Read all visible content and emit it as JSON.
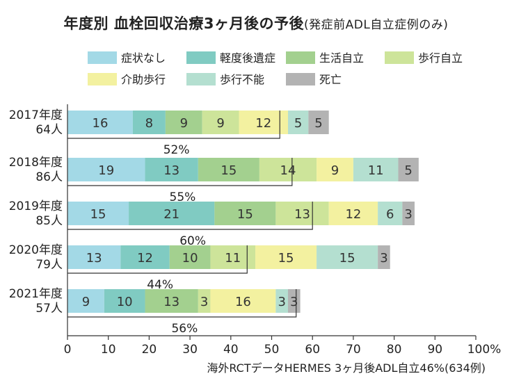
{
  "title": "年度別 血栓回収治療3ヶ月後の予後",
  "subtitle": "(発症前ADL自立症例のみ)",
  "footnote": "海外RCTデータHERMES 3ヶ月後ADL自立46%(634例)",
  "chart_data": {
    "type": "bar",
    "orientation": "horizontal",
    "stacked": true,
    "title": "年度別 血栓回収治療3ヶ月後の予後",
    "subtitle": "(発症前ADL自立症例のみ)",
    "xlim": [
      0,
      100
    ],
    "x_ticks": [
      "0",
      "10",
      "20",
      "30",
      "40",
      "50",
      "60",
      "70",
      "80",
      "90",
      "100%"
    ],
    "legend_position": "top",
    "grid": false,
    "categories": [
      {
        "year": "2017年度",
        "n": "64人"
      },
      {
        "year": "2018年度",
        "n": "86人"
      },
      {
        "year": "2019年度",
        "n": "85人"
      },
      {
        "year": "2020年度",
        "n": "79人"
      },
      {
        "year": "2021年度",
        "n": "57人"
      }
    ],
    "series": [
      {
        "name": "症状なし",
        "color": "#a3d9e6",
        "values": [
          16,
          19,
          15,
          13,
          9
        ]
      },
      {
        "name": "軽度後遺症",
        "color": "#80cbc2",
        "values": [
          8,
          13,
          21,
          12,
          10
        ]
      },
      {
        "name": "生活自立",
        "color": "#a3d08f",
        "values": [
          9,
          15,
          15,
          10,
          13
        ]
      },
      {
        "name": "歩行自立",
        "color": "#cde49a",
        "values": [
          9,
          14,
          13,
          11,
          3
        ]
      },
      {
        "name": "介助歩行",
        "color": "#f3f1a0",
        "values": [
          12,
          9,
          12,
          15,
          16
        ]
      },
      {
        "name": "歩行不能",
        "color": "#b4dfd0",
        "values": [
          5,
          11,
          6,
          15,
          3
        ]
      },
      {
        "name": "死亡",
        "color": "#b3b3b3",
        "values": [
          5,
          5,
          3,
          3,
          3
        ]
      }
    ],
    "independent_annotations": [
      {
        "label": "52%",
        "value": 52
      },
      {
        "label": "55%",
        "value": 55
      },
      {
        "label": "60%",
        "value": 60
      },
      {
        "label": "44%",
        "value": 44
      },
      {
        "label": "56%",
        "value": 56
      }
    ]
  }
}
